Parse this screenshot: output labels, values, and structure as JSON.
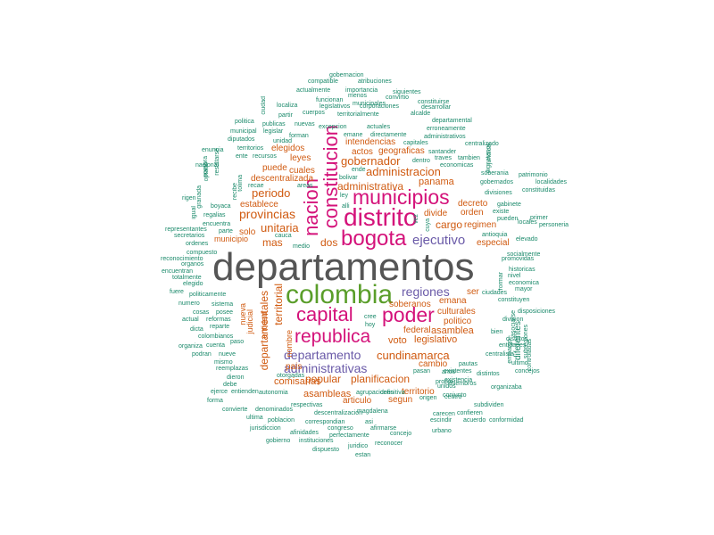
{
  "colors": {
    "top": "#555555",
    "green": "#5a9e2a",
    "magenta": "#d4127a",
    "purple": "#6a5aa8",
    "orange": "#d05a10",
    "teal": "#1b8a6b"
  },
  "words": [
    {
      "text": "departamentos",
      "color": "#555555"
    },
    {
      "text": "colombia",
      "color": "#5a9e2a"
    },
    {
      "text": "distrito",
      "color": "#d4127a"
    },
    {
      "text": "bogota",
      "color": "#d4127a"
    },
    {
      "text": "municipios",
      "color": "#d4127a"
    },
    {
      "text": "constitucion",
      "color": "#d4127a"
    },
    {
      "text": "nacion",
      "color": "#d4127a"
    },
    {
      "text": "capital",
      "color": "#d4127a"
    },
    {
      "text": "poder",
      "color": "#d4127a"
    },
    {
      "text": "republica",
      "color": "#d4127a"
    },
    {
      "text": "regiones",
      "color": "#6a5aa8"
    },
    {
      "text": "ejecutivo",
      "color": "#6a5aa8"
    },
    {
      "text": "departamento",
      "color": "#6a5aa8"
    },
    {
      "text": "administrativas",
      "color": "#6a5aa8"
    },
    {
      "text": "gobernador",
      "color": "#d05a10"
    },
    {
      "text": "administracion",
      "color": "#d05a10"
    },
    {
      "text": "administrativa",
      "color": "#d05a10"
    },
    {
      "text": "periodo",
      "color": "#d05a10"
    },
    {
      "text": "provincias",
      "color": "#d05a10"
    },
    {
      "text": "unitaria",
      "color": "#d05a10"
    },
    {
      "text": "mas",
      "color": "#d05a10"
    },
    {
      "text": "dos",
      "color": "#d05a10"
    },
    {
      "text": "cargo",
      "color": "#d05a10"
    },
    {
      "text": "territorial",
      "color": "#d05a10"
    },
    {
      "text": "departamentales",
      "color": "#d05a10"
    },
    {
      "text": "cundinamarca",
      "color": "#d05a10"
    },
    {
      "text": "popular",
      "color": "#d05a10"
    },
    {
      "text": "planificacion",
      "color": "#d05a10"
    },
    {
      "text": "legislativo",
      "color": "#d05a10"
    },
    {
      "text": "voto",
      "color": "#d05a10"
    },
    {
      "text": "asamblea",
      "color": "#d05a10"
    },
    {
      "text": "federal",
      "color": "#d05a10"
    },
    {
      "text": "asambleas",
      "color": "#d05a10"
    },
    {
      "text": "articulo",
      "color": "#d05a10"
    },
    {
      "text": "comisarias",
      "color": "#d05a10"
    },
    {
      "text": "pais",
      "color": "#d05a10"
    },
    {
      "text": "especial",
      "color": "#d05a10"
    },
    {
      "text": "regimen",
      "color": "#d05a10"
    },
    {
      "text": "orden",
      "color": "#d05a10"
    },
    {
      "text": "decreto",
      "color": "#d05a10"
    },
    {
      "text": "divide",
      "color": "#d05a10"
    },
    {
      "text": "panama",
      "color": "#d05a10"
    },
    {
      "text": "intendencias",
      "color": "#d05a10"
    },
    {
      "text": "geograficas",
      "color": "#d05a10"
    },
    {
      "text": "actos",
      "color": "#d05a10"
    },
    {
      "text": "leyes",
      "color": "#d05a10"
    },
    {
      "text": "cuales",
      "color": "#d05a10"
    },
    {
      "text": "elegidos",
      "color": "#d05a10"
    },
    {
      "text": "puede",
      "color": "#d05a10"
    },
    {
      "text": "descentralizada",
      "color": "#d05a10"
    },
    {
      "text": "establece",
      "color": "#d05a10"
    },
    {
      "text": "solo",
      "color": "#d05a10"
    },
    {
      "text": "municipio",
      "color": "#d05a10"
    },
    {
      "text": "nueva",
      "color": "#d05a10"
    },
    {
      "text": "judicial",
      "color": "#d05a10"
    },
    {
      "text": "entidad",
      "color": "#d05a10"
    },
    {
      "text": "nombre",
      "color": "#d05a10"
    },
    {
      "text": "soberanos",
      "color": "#d05a10"
    },
    {
      "text": "emana",
      "color": "#d05a10"
    },
    {
      "text": "culturales",
      "color": "#d05a10"
    },
    {
      "text": "politico",
      "color": "#d05a10"
    },
    {
      "text": "ser",
      "color": "#d05a10"
    },
    {
      "text": "cambio",
      "color": "#d05a10"
    },
    {
      "text": "territorio",
      "color": "#d05a10"
    },
    {
      "text": "segun",
      "color": "#d05a10"
    },
    {
      "text": "gobernacion",
      "color": "#1b8a6b"
    },
    {
      "text": "compatible",
      "color": "#1b8a6b"
    },
    {
      "text": "atribuciones",
      "color": "#1b8a6b"
    },
    {
      "text": "actualmente",
      "color": "#1b8a6b"
    },
    {
      "text": "importancia",
      "color": "#1b8a6b"
    },
    {
      "text": "siguientes",
      "color": "#1b8a6b"
    },
    {
      "text": "funcionan",
      "color": "#1b8a6b"
    },
    {
      "text": "menos",
      "color": "#1b8a6b"
    },
    {
      "text": "convirtio",
      "color": "#1b8a6b"
    },
    {
      "text": "constituirse",
      "color": "#1b8a6b"
    },
    {
      "text": "municipales",
      "color": "#1b8a6b"
    },
    {
      "text": "localiza",
      "color": "#1b8a6b"
    },
    {
      "text": "legislativos",
      "color": "#1b8a6b"
    },
    {
      "text": "corporaciones",
      "color": "#1b8a6b"
    },
    {
      "text": "desarrollar",
      "color": "#1b8a6b"
    },
    {
      "text": "partir",
      "color": "#1b8a6b"
    },
    {
      "text": "cuerpos",
      "color": "#1b8a6b"
    },
    {
      "text": "territorialmente",
      "color": "#1b8a6b"
    },
    {
      "text": "alcalde",
      "color": "#1b8a6b"
    },
    {
      "text": "departamental",
      "color": "#1b8a6b"
    },
    {
      "text": "politica",
      "color": "#1b8a6b"
    },
    {
      "text": "publicas",
      "color": "#1b8a6b"
    },
    {
      "text": "nuevas",
      "color": "#1b8a6b"
    },
    {
      "text": "excepcion",
      "color": "#1b8a6b"
    },
    {
      "text": "actuales",
      "color": "#1b8a6b"
    },
    {
      "text": "erroneamente",
      "color": "#1b8a6b"
    },
    {
      "text": "municipal",
      "color": "#1b8a6b"
    },
    {
      "text": "legislar",
      "color": "#1b8a6b"
    },
    {
      "text": "forman",
      "color": "#1b8a6b"
    },
    {
      "text": "emane",
      "color": "#1b8a6b"
    },
    {
      "text": "directamente",
      "color": "#1b8a6b"
    },
    {
      "text": "administrativos",
      "color": "#1b8a6b"
    },
    {
      "text": "diputados",
      "color": "#1b8a6b"
    },
    {
      "text": "unidad",
      "color": "#1b8a6b"
    },
    {
      "text": "capitales",
      "color": "#1b8a6b"
    },
    {
      "text": "centralizado",
      "color": "#1b8a6b"
    },
    {
      "text": "enuncia",
      "color": "#1b8a6b"
    },
    {
      "text": "territorios",
      "color": "#1b8a6b"
    },
    {
      "text": "ente",
      "color": "#1b8a6b"
    },
    {
      "text": "recursos",
      "color": "#1b8a6b"
    },
    {
      "text": "santander",
      "color": "#1b8a6b"
    },
    {
      "text": "traves",
      "color": "#1b8a6b"
    },
    {
      "text": "tambien",
      "color": "#1b8a6b"
    },
    {
      "text": "dentro",
      "color": "#1b8a6b"
    },
    {
      "text": "economicas",
      "color": "#1b8a6b"
    },
    {
      "text": "nacional",
      "color": "#1b8a6b"
    },
    {
      "text": "ende",
      "color": "#1b8a6b"
    },
    {
      "text": "bolivar",
      "color": "#1b8a6b"
    },
    {
      "text": "patrimonio",
      "color": "#1b8a6b"
    },
    {
      "text": "soberania",
      "color": "#1b8a6b"
    },
    {
      "text": "gobernados",
      "color": "#1b8a6b"
    },
    {
      "text": "localidades",
      "color": "#1b8a6b"
    },
    {
      "text": "recae",
      "color": "#1b8a6b"
    },
    {
      "text": "areas",
      "color": "#1b8a6b"
    },
    {
      "text": "divisiones",
      "color": "#1b8a6b"
    },
    {
      "text": "constituidas",
      "color": "#1b8a6b"
    },
    {
      "text": "rigen",
      "color": "#1b8a6b"
    },
    {
      "text": "ley",
      "color": "#1b8a6b"
    },
    {
      "text": "gabinete",
      "color": "#1b8a6b"
    },
    {
      "text": "boyaca",
      "color": "#1b8a6b"
    },
    {
      "text": "alli",
      "color": "#1b8a6b"
    },
    {
      "text": "existe",
      "color": "#1b8a6b"
    },
    {
      "text": "regalias",
      "color": "#1b8a6b"
    },
    {
      "text": "pueden",
      "color": "#1b8a6b"
    },
    {
      "text": "primer",
      "color": "#1b8a6b"
    },
    {
      "text": "encuentra",
      "color": "#1b8a6b"
    },
    {
      "text": "locales",
      "color": "#1b8a6b"
    },
    {
      "text": "personeria",
      "color": "#1b8a6b"
    },
    {
      "text": "representantes",
      "color": "#1b8a6b"
    },
    {
      "text": "secretarios",
      "color": "#1b8a6b"
    },
    {
      "text": "parte",
      "color": "#1b8a6b"
    },
    {
      "text": "cauca",
      "color": "#1b8a6b"
    },
    {
      "text": "antioquia",
      "color": "#1b8a6b"
    },
    {
      "text": "elevado",
      "color": "#1b8a6b"
    },
    {
      "text": "ordenes",
      "color": "#1b8a6b"
    },
    {
      "text": "medio",
      "color": "#1b8a6b"
    },
    {
      "text": "compuesto",
      "color": "#1b8a6b"
    },
    {
      "text": "socialmente",
      "color": "#1b8a6b"
    },
    {
      "text": "reconocimiento",
      "color": "#1b8a6b"
    },
    {
      "text": "promovidas",
      "color": "#1b8a6b"
    },
    {
      "text": "organos",
      "color": "#1b8a6b"
    },
    {
      "text": "encuentran",
      "color": "#1b8a6b"
    },
    {
      "text": "historicas",
      "color": "#1b8a6b"
    },
    {
      "text": "totalmente",
      "color": "#1b8a6b"
    },
    {
      "text": "nivel",
      "color": "#1b8a6b"
    },
    {
      "text": "elegido",
      "color": "#1b8a6b"
    },
    {
      "text": "economica",
      "color": "#1b8a6b"
    },
    {
      "text": "fuere",
      "color": "#1b8a6b"
    },
    {
      "text": "politicamente",
      "color": "#1b8a6b"
    },
    {
      "text": "mayor",
      "color": "#1b8a6b"
    },
    {
      "text": "ciudades",
      "color": "#1b8a6b"
    },
    {
      "text": "numero",
      "color": "#1b8a6b"
    },
    {
      "text": "constituyen",
      "color": "#1b8a6b"
    },
    {
      "text": "sistema",
      "color": "#1b8a6b"
    },
    {
      "text": "cosas",
      "color": "#1b8a6b"
    },
    {
      "text": "posee",
      "color": "#1b8a6b"
    },
    {
      "text": "diferentes",
      "color": "#1b8a6b"
    },
    {
      "text": "disposiciones",
      "color": "#1b8a6b"
    },
    {
      "text": "actual",
      "color": "#1b8a6b"
    },
    {
      "text": "reformas",
      "color": "#1b8a6b"
    },
    {
      "text": "reparte",
      "color": "#1b8a6b"
    },
    {
      "text": "cree",
      "color": "#1b8a6b"
    },
    {
      "text": "division",
      "color": "#1b8a6b"
    },
    {
      "text": "dicta",
      "color": "#1b8a6b"
    },
    {
      "text": "hoy",
      "color": "#1b8a6b"
    },
    {
      "text": "bien",
      "color": "#1b8a6b"
    },
    {
      "text": "colombianos",
      "color": "#1b8a6b"
    },
    {
      "text": "distritos",
      "color": "#1b8a6b"
    },
    {
      "text": "organiza",
      "color": "#1b8a6b"
    },
    {
      "text": "cuenta",
      "color": "#1b8a6b"
    },
    {
      "text": "paso",
      "color": "#1b8a6b"
    },
    {
      "text": "entidades",
      "color": "#1b8a6b"
    },
    {
      "text": "podran",
      "color": "#1b8a6b"
    },
    {
      "text": "nueve",
      "color": "#1b8a6b"
    },
    {
      "text": "centralista",
      "color": "#1b8a6b"
    },
    {
      "text": "mismo",
      "color": "#1b8a6b"
    },
    {
      "text": "pautas",
      "color": "#1b8a6b"
    },
    {
      "text": "ultimo",
      "color": "#1b8a6b"
    },
    {
      "text": "reemplazas",
      "color": "#1b8a6b"
    },
    {
      "text": "dieron",
      "color": "#1b8a6b"
    },
    {
      "text": "otorgadas",
      "color": "#1b8a6b"
    },
    {
      "text": "concejos",
      "color": "#1b8a6b"
    },
    {
      "text": "debe",
      "color": "#1b8a6b"
    },
    {
      "text": "propio",
      "color": "#1b8a6b"
    },
    {
      "text": "miembros",
      "color": "#1b8a6b"
    },
    {
      "text": "ejerce",
      "color": "#1b8a6b"
    },
    {
      "text": "autonomia",
      "color": "#1b8a6b"
    },
    {
      "text": "existencia",
      "color": "#1b8a6b"
    },
    {
      "text": "organizaba",
      "color": "#1b8a6b"
    },
    {
      "text": "forma",
      "color": "#1b8a6b"
    },
    {
      "text": "entienden",
      "color": "#1b8a6b"
    },
    {
      "text": "agrupaciones",
      "color": "#1b8a6b"
    },
    {
      "text": "definitiva",
      "color": "#1b8a6b"
    },
    {
      "text": "pasan",
      "color": "#1b8a6b"
    },
    {
      "text": "anos",
      "color": "#1b8a6b"
    },
    {
      "text": "distintos",
      "color": "#1b8a6b"
    },
    {
      "text": "unidos",
      "color": "#1b8a6b"
    },
    {
      "text": "conjunto",
      "color": "#1b8a6b"
    },
    {
      "text": "existentes",
      "color": "#1b8a6b"
    },
    {
      "text": "convierte",
      "color": "#1b8a6b"
    },
    {
      "text": "denominados",
      "color": "#1b8a6b"
    },
    {
      "text": "respectivas",
      "color": "#1b8a6b"
    },
    {
      "text": "origen",
      "color": "#1b8a6b"
    },
    {
      "text": "centro",
      "color": "#1b8a6b"
    },
    {
      "text": "subdividen",
      "color": "#1b8a6b"
    },
    {
      "text": "ultima",
      "color": "#1b8a6b"
    },
    {
      "text": "descentralizacion",
      "color": "#1b8a6b"
    },
    {
      "text": "magdalena",
      "color": "#1b8a6b"
    },
    {
      "text": "carecen",
      "color": "#1b8a6b"
    },
    {
      "text": "confieren",
      "color": "#1b8a6b"
    },
    {
      "text": "poblacion",
      "color": "#1b8a6b"
    },
    {
      "text": "correspondian",
      "color": "#1b8a6b"
    },
    {
      "text": "asi",
      "color": "#1b8a6b"
    },
    {
      "text": "escindir",
      "color": "#1b8a6b"
    },
    {
      "text": "acuerdo",
      "color": "#1b8a6b"
    },
    {
      "text": "conformidad",
      "color": "#1b8a6b"
    },
    {
      "text": "jurisdiccion",
      "color": "#1b8a6b"
    },
    {
      "text": "congreso",
      "color": "#1b8a6b"
    },
    {
      "text": "afirmarse",
      "color": "#1b8a6b"
    },
    {
      "text": "urbano",
      "color": "#1b8a6b"
    },
    {
      "text": "afinidades",
      "color": "#1b8a6b"
    },
    {
      "text": "perfectamente",
      "color": "#1b8a6b"
    },
    {
      "text": "concejo",
      "color": "#1b8a6b"
    },
    {
      "text": "gobierno",
      "color": "#1b8a6b"
    },
    {
      "text": "instituciones",
      "color": "#1b8a6b"
    },
    {
      "text": "reconocer",
      "color": "#1b8a6b"
    },
    {
      "text": "dispuesto",
      "color": "#1b8a6b"
    },
    {
      "text": "juridico",
      "color": "#1b8a6b"
    },
    {
      "text": "estan",
      "color": "#1b8a6b"
    },
    {
      "text": "ciudad",
      "color": "#1b8a6b"
    },
    {
      "text": "juridica",
      "color": "#1b8a6b"
    },
    {
      "text": "optado",
      "color": "#1b8a6b"
    },
    {
      "text": "nombra",
      "color": "#1b8a6b"
    },
    {
      "text": "recibe",
      "color": "#1b8a6b"
    },
    {
      "text": "tolima",
      "color": "#1b8a6b"
    },
    {
      "text": "resultarse",
      "color": "#1b8a6b"
    },
    {
      "text": "granada",
      "color": "#1b8a6b"
    },
    {
      "text": "igual",
      "color": "#1b8a6b"
    },
    {
      "text": "vez",
      "color": "#1b8a6b"
    },
    {
      "text": "cuya",
      "color": "#1b8a6b"
    },
    {
      "text": "formar",
      "color": "#1b8a6b"
    },
    {
      "text": "embargo",
      "color": "#1b8a6b"
    },
    {
      "text": "asociarse",
      "color": "#1b8a6b"
    },
    {
      "text": "subregiones",
      "color": "#1b8a6b"
    },
    {
      "text": "controladas",
      "color": "#1b8a6b"
    },
    {
      "text": "dignatarios",
      "color": "#1b8a6b"
    }
  ]
}
